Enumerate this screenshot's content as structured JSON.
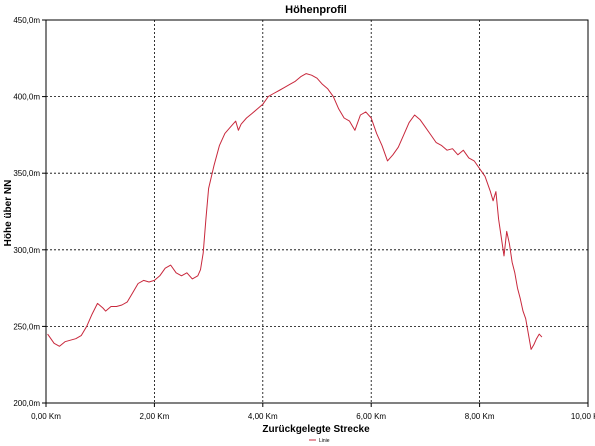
{
  "chart_data": {
    "type": "line",
    "title": "Höhenprofil",
    "xlabel": "Zurückgelegte Strecke",
    "ylabel": "Höhe über NN",
    "xlim": [
      0,
      10
    ],
    "ylim": [
      200,
      450
    ],
    "x_ticks": [
      0,
      2,
      4,
      6,
      8,
      10
    ],
    "x_tick_labels": [
      "0,00 Km",
      "2,00 Km",
      "4,00 Km",
      "6,00 Km",
      "8,00 Km",
      "10,00 Km"
    ],
    "y_ticks": [
      200,
      250,
      300,
      350,
      400,
      450
    ],
    "y_tick_labels": [
      "200,0m",
      "250,0m",
      "300,0m",
      "350,0m",
      "400,0m",
      "450,0m"
    ],
    "grid": true,
    "legend": "bottom-center",
    "series": [
      {
        "name": "Linie",
        "color": "#c8283c",
        "x": [
          0.03,
          0.15,
          0.25,
          0.35,
          0.45,
          0.55,
          0.65,
          0.75,
          0.85,
          0.95,
          1.05,
          1.1,
          1.2,
          1.3,
          1.4,
          1.5,
          1.6,
          1.7,
          1.8,
          1.9,
          2.0,
          2.1,
          2.2,
          2.3,
          2.4,
          2.5,
          2.6,
          2.7,
          2.8,
          2.85,
          2.9,
          2.95,
          3.0,
          3.1,
          3.2,
          3.3,
          3.4,
          3.5,
          3.55,
          3.6,
          3.7,
          3.8,
          3.9,
          4.0,
          4.1,
          4.2,
          4.3,
          4.4,
          4.5,
          4.6,
          4.7,
          4.8,
          4.9,
          5.0,
          5.1,
          5.2,
          5.3,
          5.4,
          5.5,
          5.6,
          5.7,
          5.8,
          5.9,
          6.0,
          6.1,
          6.2,
          6.3,
          6.4,
          6.5,
          6.6,
          6.7,
          6.8,
          6.9,
          7.0,
          7.1,
          7.2,
          7.3,
          7.4,
          7.5,
          7.6,
          7.7,
          7.8,
          7.9,
          8.0,
          8.1,
          8.2,
          8.25,
          8.3,
          8.35,
          8.4,
          8.45,
          8.5,
          8.55,
          8.6,
          8.65,
          8.7,
          8.75,
          8.8,
          8.85,
          8.9,
          8.95,
          9.0,
          9.05,
          9.1,
          9.15
        ],
        "y": [
          245,
          239,
          237,
          240,
          241,
          242,
          244,
          250,
          258,
          265,
          262,
          260,
          263,
          263,
          264,
          266,
          272,
          278,
          280,
          279,
          280,
          283,
          288,
          290,
          285,
          283,
          285,
          281,
          283,
          287,
          298,
          320,
          340,
          355,
          368,
          376,
          380,
          384,
          378,
          382,
          386,
          389,
          392,
          395,
          400,
          402,
          404,
          406,
          408,
          410,
          413,
          415,
          414,
          412,
          408,
          405,
          400,
          392,
          386,
          384,
          378,
          388,
          390,
          386,
          376,
          368,
          358,
          362,
          367,
          375,
          383,
          388,
          385,
          380,
          375,
          370,
          368,
          365,
          366,
          362,
          365,
          360,
          358,
          353,
          348,
          338,
          332,
          338,
          320,
          308,
          296,
          312,
          304,
          292,
          285,
          275,
          268,
          260,
          255,
          245,
          235,
          238,
          242,
          245,
          243
        ]
      }
    ]
  }
}
